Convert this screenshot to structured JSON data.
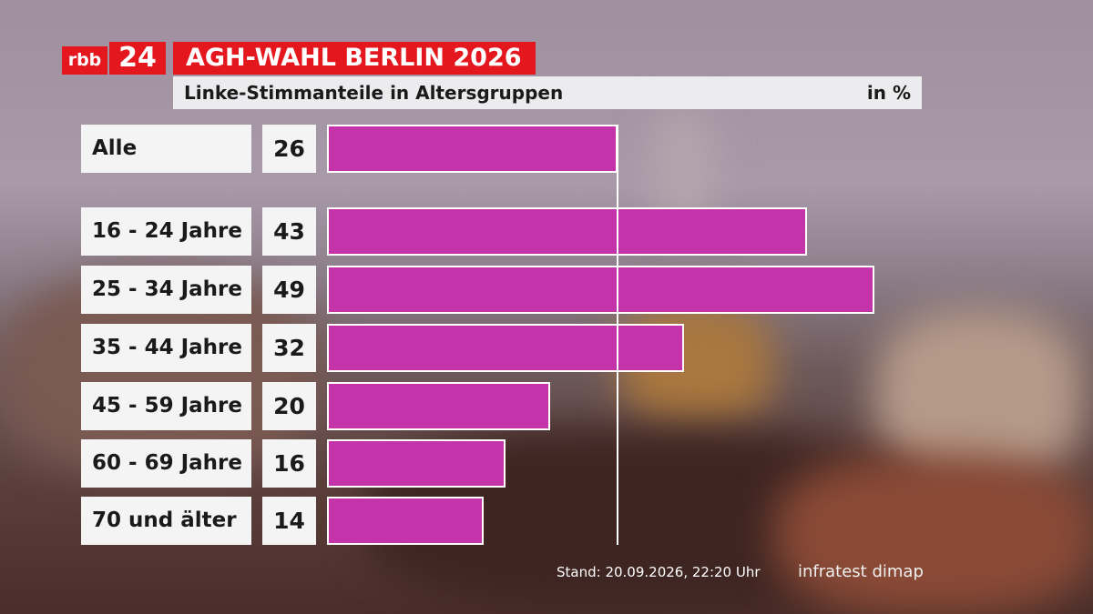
{
  "brand": {
    "logo_rbb": "rbb",
    "logo_24": "24"
  },
  "headline": "AGH-WAHL BERLIN 2026",
  "subhead": {
    "title": "Linke-Stimmanteile in Altersgruppen",
    "unit": "in %"
  },
  "colors": {
    "bar": "#c433aa",
    "brand_red": "#e3171d",
    "label_bg": "#f4f4f4"
  },
  "chart_data": {
    "type": "bar",
    "orientation": "horizontal",
    "title": "Linke-Stimmanteile in Altersgruppen",
    "unit": "in %",
    "categories": [
      "Alle",
      "16 - 24 Jahre",
      "25 - 34 Jahre",
      "35 - 44 Jahre",
      "45 - 59 Jahre",
      "60 - 69 Jahre",
      "70 und älter"
    ],
    "values": [
      26,
      43,
      49,
      32,
      20,
      16,
      14
    ],
    "value_labels": [
      "26",
      "43",
      "49",
      "32",
      "20",
      "16",
      "14"
    ],
    "reference_line": 26,
    "xlim": [
      0,
      49
    ]
  },
  "footer": {
    "stand": "Stand: 20.09.2026, 22:20 Uhr",
    "source": "infratest dimap"
  }
}
